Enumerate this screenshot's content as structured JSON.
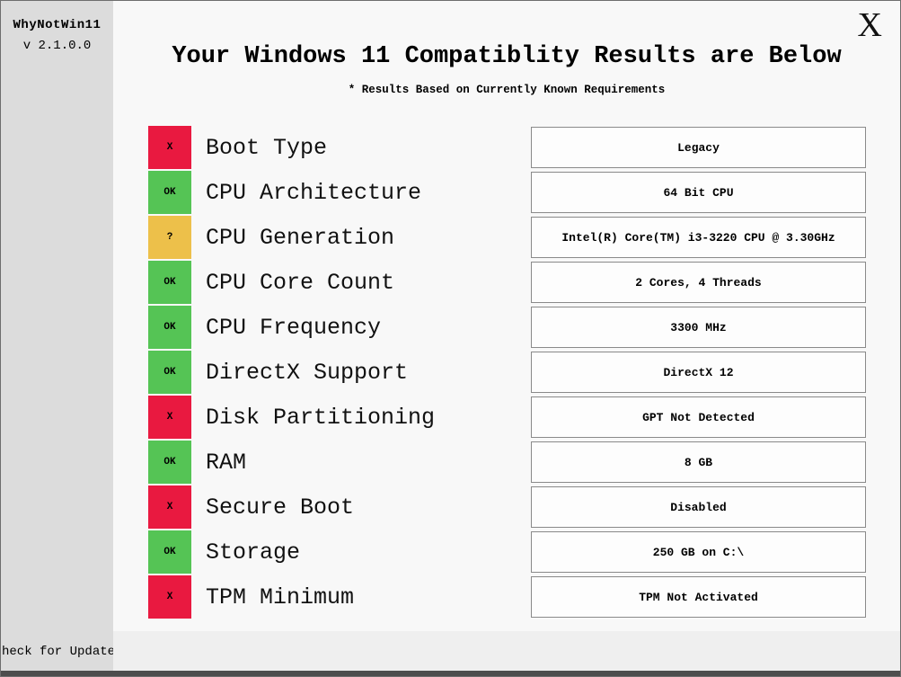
{
  "app": {
    "name": "WhyNotWin11",
    "version": "v 2.1.0.0",
    "update_label": "heck for Update"
  },
  "header": {
    "title": "Your Windows 11 Compatiblity Results are Below",
    "subtitle": "* Results Based on Currently Known Requirements",
    "close_label": "X"
  },
  "colors": {
    "ok": "#55c455",
    "fail": "#e91940",
    "unsure": "#edc04a",
    "sidebar": "#dcdcdc",
    "bottom_bar": "#4d4d4d"
  },
  "results": [
    {
      "status": "X",
      "status_type": "fail",
      "label": "Boot Type",
      "value": "Legacy"
    },
    {
      "status": "OK",
      "status_type": "ok",
      "label": "CPU Architecture",
      "value": "64 Bit CPU"
    },
    {
      "status": "?",
      "status_type": "unsure",
      "label": "CPU Generation",
      "value": "Intel(R) Core(TM) i3-3220 CPU @ 3.30GHz"
    },
    {
      "status": "OK",
      "status_type": "ok",
      "label": "CPU Core Count",
      "value": "2 Cores, 4 Threads"
    },
    {
      "status": "OK",
      "status_type": "ok",
      "label": "CPU Frequency",
      "value": "3300 MHz"
    },
    {
      "status": "OK",
      "status_type": "ok",
      "label": "DirectX Support",
      "value": "DirectX 12"
    },
    {
      "status": "X",
      "status_type": "fail",
      "label": "Disk Partitioning",
      "value": "GPT Not Detected"
    },
    {
      "status": "OK",
      "status_type": "ok",
      "label": "RAM",
      "value": "8 GB"
    },
    {
      "status": "X",
      "status_type": "fail",
      "label": "Secure Boot",
      "value": "Disabled"
    },
    {
      "status": "OK",
      "status_type": "ok",
      "label": "Storage",
      "value": "250 GB on C:\\"
    },
    {
      "status": "X",
      "status_type": "fail",
      "label": "TPM Minimum",
      "value": "TPM Not Activated"
    }
  ]
}
